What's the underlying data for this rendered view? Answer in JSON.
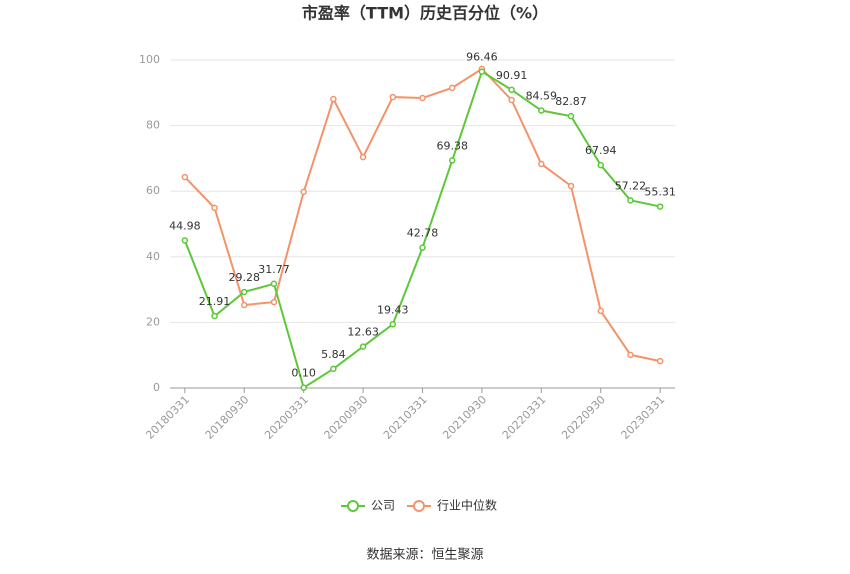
{
  "chart_data": {
    "type": "line",
    "title": "市盈率（TTM）历史百分位（%）",
    "categories": [
      "20180331",
      null,
      "20180930",
      null,
      "20200331",
      null,
      "20200930",
      null,
      "20210331",
      null,
      "20210930",
      null,
      "20220331",
      null,
      "20220930",
      null,
      "20230331"
    ],
    "series": [
      {
        "name": "公司",
        "color": "#5dc83a",
        "values": [
          44.98,
          21.91,
          29.28,
          31.77,
          0.1,
          5.84,
          12.63,
          19.43,
          42.78,
          69.38,
          96.46,
          90.91,
          84.59,
          82.87,
          67.94,
          57.22,
          55.31
        ],
        "value_labels": [
          "44.98",
          "21.91",
          "29.28",
          "31.77",
          "0.10",
          "5.84",
          "12.63",
          "19.43",
          "42.78",
          "69.38",
          "96.46",
          "90.91",
          "84.59",
          "82.87",
          "67.94",
          "57.22",
          "55.31"
        ]
      },
      {
        "name": "行业中位数",
        "color": "#f4936a",
        "values": [
          64.3,
          54.9,
          25.3,
          26.2,
          59.8,
          88.1,
          70.4,
          88.7,
          88.4,
          91.5,
          97.3,
          87.8,
          68.3,
          61.6,
          23.5,
          10.1,
          8.2
        ]
      }
    ],
    "ylim": [
      0,
      100
    ],
    "yticks": [
      0,
      20,
      40,
      60,
      80,
      100
    ],
    "grid": true,
    "legend": "bottom",
    "source": "数据来源：恒生聚源"
  }
}
